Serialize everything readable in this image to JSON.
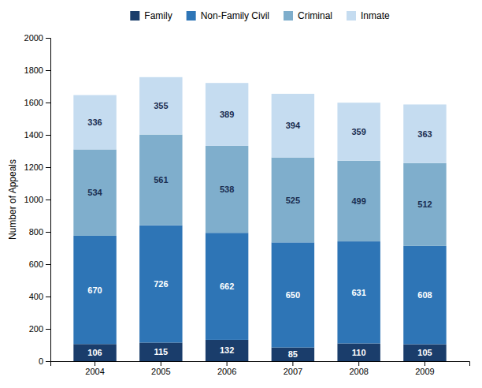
{
  "chart_data": {
    "type": "bar",
    "stacked": true,
    "categories": [
      "2004",
      "2005",
      "2006",
      "2007",
      "2008",
      "2009"
    ],
    "series": [
      {
        "name": "Family",
        "color": "#1A3D6B",
        "values": [
          106,
          115,
          132,
          85,
          110,
          105
        ]
      },
      {
        "name": "Non-Family Civil",
        "color": "#2E75B6",
        "values": [
          670,
          726,
          662,
          650,
          631,
          608
        ]
      },
      {
        "name": "Criminal",
        "color": "#7FAECC",
        "values": [
          534,
          561,
          538,
          525,
          499,
          512
        ]
      },
      {
        "name": "Inmate",
        "color": "#C5DCF0",
        "values": [
          336,
          355,
          389,
          394,
          359,
          363
        ]
      }
    ],
    "ylabel": "Number of Appeals",
    "ylim": [
      0,
      2000
    ],
    "yticks": [
      0,
      200,
      400,
      600,
      800,
      1000,
      1200,
      1400,
      1600,
      1800,
      2000
    ],
    "grid": false,
    "legend": "top",
    "data_labels": true
  }
}
